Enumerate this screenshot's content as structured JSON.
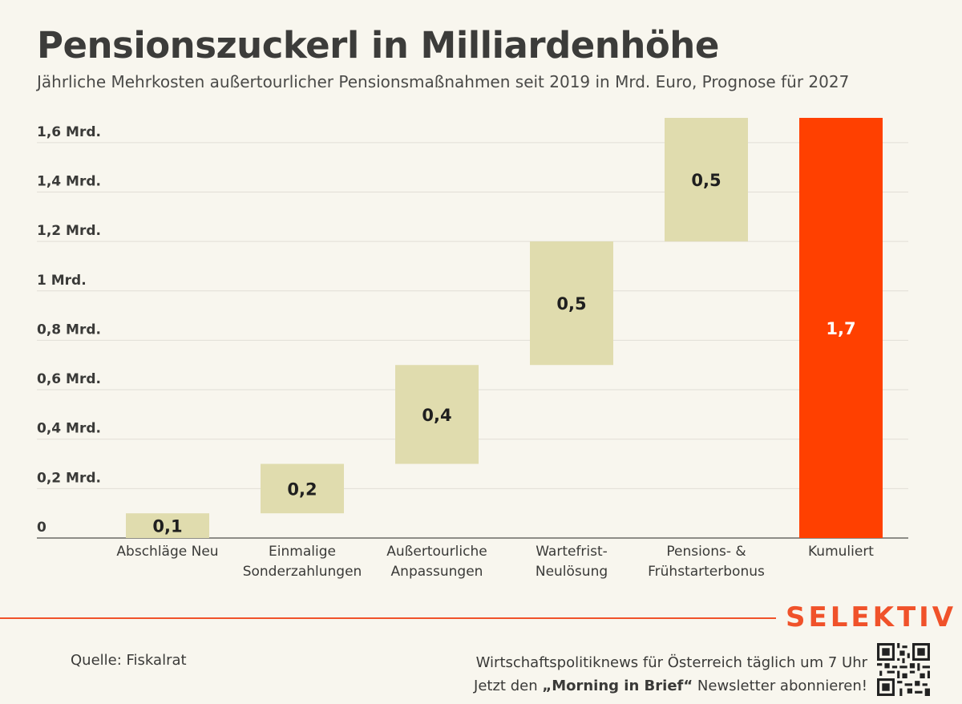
{
  "chart_data": {
    "type": "bar",
    "subtype": "waterfall",
    "title": "Pensionszuckerl in Milliardenhöhe",
    "subtitle": "Jährliche Mehrkosten außertourlicher Pensionsmaßnahmen seit 2019 in Mrd. Euro, Prognose für 2027",
    "categories": [
      [
        "Abschläge Neu"
      ],
      [
        "Einmalige",
        "Sonderzahlungen"
      ],
      [
        "Außertourliche",
        "Anpassungen"
      ],
      [
        "Wartefrist-",
        "Neulösung"
      ],
      [
        "Pensions- &",
        "Frühstarterbonus"
      ],
      [
        "Kumuliert"
      ]
    ],
    "values": [
      0.1,
      0.2,
      0.4,
      0.5,
      0.5,
      1.7
    ],
    "bases": [
      0,
      0.1,
      0.3,
      0.7,
      1.2,
      0
    ],
    "labels": [
      "0,1",
      "0,2",
      "0,4",
      "0,5",
      "0,5",
      "1,7"
    ],
    "ylim": [
      0,
      1.7
    ],
    "yticks": [
      {
        "value": 0,
        "label": "0"
      },
      {
        "value": 0.2,
        "label": "0,2 Mrd."
      },
      {
        "value": 0.4,
        "label": "0,4 Mrd."
      },
      {
        "value": 0.6,
        "label": "0,6 Mrd."
      },
      {
        "value": 0.8,
        "label": "0,8 Mrd."
      },
      {
        "value": 1.0,
        "label": "1 Mrd."
      },
      {
        "value": 1.2,
        "label": "1,2 Mrd."
      },
      {
        "value": 1.4,
        "label": "1,4 Mrd."
      },
      {
        "value": 1.6,
        "label": "1,6 Mrd."
      }
    ],
    "grid": true,
    "colors": {
      "step": "#e0dcae",
      "total": "#ff4000",
      "step_label": "#1f1f1f",
      "total_label": "#ffffff",
      "grid": "#e1ded6",
      "axis": "#6a6a66"
    }
  },
  "footer": {
    "brand": "SELEKTIV",
    "source": "Quelle: Fiskalrat",
    "promo_line1": "Wirtschaftspolitiknews für Österreich täglich um 7 Uhr",
    "promo_line2_pre": "Jetzt den ",
    "promo_line2_bold": "„Morning in Brief“",
    "promo_line2_post": " Newsletter abonnieren!",
    "qr_icon": "qr-code-icon",
    "accent": "#f0522a"
  }
}
